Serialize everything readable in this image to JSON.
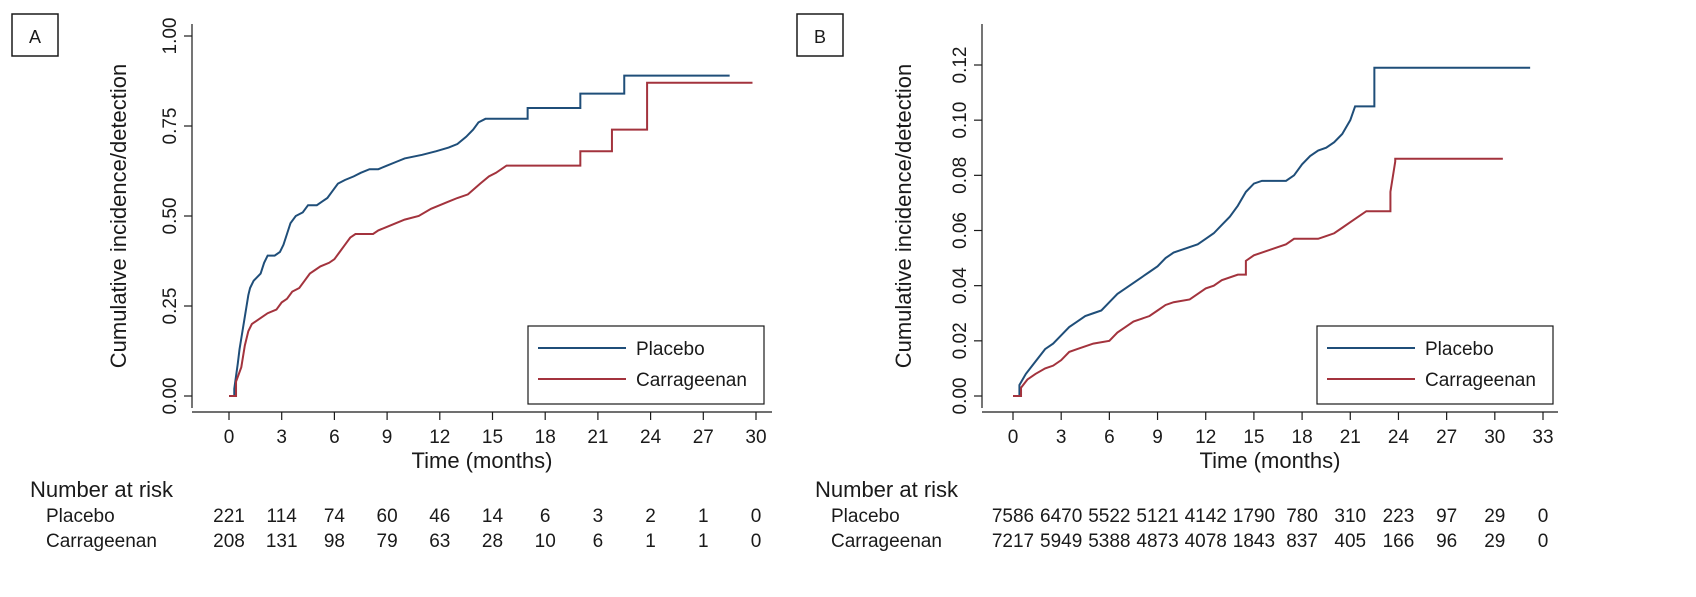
{
  "chart_data": [
    {
      "type": "line",
      "panel_label": "A",
      "ylabel": "Cumulative incidence/detection",
      "xlabel": "Time (months)",
      "xlim": [
        0,
        30
      ],
      "ylim": [
        0,
        1
      ],
      "x_ticks": [
        "0",
        "3",
        "6",
        "9",
        "12",
        "15",
        "18",
        "21",
        "24",
        "27",
        "30"
      ],
      "y_ticks": [
        "0.00",
        "0.25",
        "0.50",
        "0.75",
        "1.00"
      ],
      "grid": false,
      "legend_position": "bottom-right",
      "series": [
        {
          "name": "Placebo",
          "color": "#1f4e79",
          "points": [
            [
              0,
              0
            ],
            [
              0.3,
              0
            ],
            [
              0.3,
              0.02
            ],
            [
              0.5,
              0.09
            ],
            [
              0.6,
              0.13
            ],
            [
              0.7,
              0.16
            ],
            [
              0.8,
              0.19
            ],
            [
              0.9,
              0.22
            ],
            [
              1.0,
              0.25
            ],
            [
              1.1,
              0.28
            ],
            [
              1.2,
              0.3
            ],
            [
              1.4,
              0.32
            ],
            [
              1.6,
              0.33
            ],
            [
              1.8,
              0.34
            ],
            [
              2.0,
              0.37
            ],
            [
              2.2,
              0.39
            ],
            [
              2.6,
              0.39
            ],
            [
              2.9,
              0.4
            ],
            [
              3.1,
              0.42
            ],
            [
              3.3,
              0.45
            ],
            [
              3.5,
              0.48
            ],
            [
              3.8,
              0.5
            ],
            [
              4.2,
              0.51
            ],
            [
              4.5,
              0.53
            ],
            [
              5.0,
              0.53
            ],
            [
              5.3,
              0.54
            ],
            [
              5.6,
              0.55
            ],
            [
              5.9,
              0.57
            ],
            [
              6.2,
              0.59
            ],
            [
              6.6,
              0.6
            ],
            [
              7.1,
              0.61
            ],
            [
              7.5,
              0.62
            ],
            [
              8.0,
              0.63
            ],
            [
              8.5,
              0.63
            ],
            [
              9.0,
              0.64
            ],
            [
              9.5,
              0.65
            ],
            [
              10.0,
              0.66
            ],
            [
              11.0,
              0.67
            ],
            [
              11.8,
              0.68
            ],
            [
              12.5,
              0.69
            ],
            [
              13.0,
              0.7
            ],
            [
              13.5,
              0.72
            ],
            [
              13.9,
              0.74
            ],
            [
              14.2,
              0.76
            ],
            [
              14.6,
              0.77
            ],
            [
              17.0,
              0.77
            ],
            [
              17.0,
              0.8
            ],
            [
              20.0,
              0.8
            ],
            [
              20.0,
              0.84
            ],
            [
              22.5,
              0.84
            ],
            [
              22.5,
              0.89
            ],
            [
              28.5,
              0.89
            ]
          ]
        },
        {
          "name": "Carrageenan",
          "color": "#a3333d",
          "points": [
            [
              0,
              0
            ],
            [
              0.4,
              0
            ],
            [
              0.4,
              0.04
            ],
            [
              0.7,
              0.08
            ],
            [
              0.9,
              0.14
            ],
            [
              1.1,
              0.18
            ],
            [
              1.3,
              0.2
            ],
            [
              1.6,
              0.21
            ],
            [
              1.9,
              0.22
            ],
            [
              2.2,
              0.23
            ],
            [
              2.7,
              0.24
            ],
            [
              3.0,
              0.26
            ],
            [
              3.3,
              0.27
            ],
            [
              3.6,
              0.29
            ],
            [
              4.0,
              0.3
            ],
            [
              4.3,
              0.32
            ],
            [
              4.6,
              0.34
            ],
            [
              4.9,
              0.35
            ],
            [
              5.2,
              0.36
            ],
            [
              5.7,
              0.37
            ],
            [
              6.0,
              0.38
            ],
            [
              6.3,
              0.4
            ],
            [
              6.6,
              0.42
            ],
            [
              6.9,
              0.44
            ],
            [
              7.2,
              0.45
            ],
            [
              8.2,
              0.45
            ],
            [
              8.5,
              0.46
            ],
            [
              9.0,
              0.47
            ],
            [
              9.5,
              0.48
            ],
            [
              10.0,
              0.49
            ],
            [
              10.8,
              0.5
            ],
            [
              11.5,
              0.52
            ],
            [
              12.0,
              0.53
            ],
            [
              12.5,
              0.54
            ],
            [
              13.0,
              0.55
            ],
            [
              13.6,
              0.56
            ],
            [
              14.3,
              0.59
            ],
            [
              14.8,
              0.61
            ],
            [
              15.2,
              0.62
            ],
            [
              15.8,
              0.64
            ],
            [
              20.0,
              0.64
            ],
            [
              20.0,
              0.68
            ],
            [
              21.8,
              0.68
            ],
            [
              21.8,
              0.74
            ],
            [
              23.8,
              0.74
            ],
            [
              23.8,
              0.87
            ],
            [
              29.8,
              0.87
            ]
          ]
        }
      ],
      "risk_table": {
        "title": "Number at risk",
        "rows": [
          {
            "name": "Placebo",
            "values": [
              "221",
              "114",
              "74",
              "60",
              "46",
              "14",
              "6",
              "3",
              "2",
              "1",
              "0"
            ]
          },
          {
            "name": "Carrageenan",
            "values": [
              "208",
              "131",
              "98",
              "79",
              "63",
              "28",
              "10",
              "6",
              "1",
              "1",
              "0"
            ]
          }
        ]
      }
    },
    {
      "type": "line",
      "panel_label": "B",
      "ylabel": "Cumulative incidence/detection",
      "xlabel": "Time (months)",
      "xlim": [
        0,
        33
      ],
      "ylim": [
        0,
        0.13
      ],
      "x_ticks": [
        "0",
        "3",
        "6",
        "9",
        "12",
        "15",
        "18",
        "21",
        "24",
        "27",
        "30",
        "33"
      ],
      "y_ticks": [
        "0.00",
        "0.02",
        "0.04",
        "0.06",
        "0.08",
        "0.10",
        "0.12"
      ],
      "grid": false,
      "legend_position": "bottom-right",
      "series": [
        {
          "name": "Placebo",
          "color": "#1f4e79",
          "points": [
            [
              0,
              0
            ],
            [
              0.4,
              0
            ],
            [
              0.4,
              0.004
            ],
            [
              0.8,
              0.008
            ],
            [
              1.2,
              0.011
            ],
            [
              1.6,
              0.014
            ],
            [
              2.0,
              0.017
            ],
            [
              2.5,
              0.019
            ],
            [
              3.0,
              0.022
            ],
            [
              3.5,
              0.025
            ],
            [
              4.0,
              0.027
            ],
            [
              4.5,
              0.029
            ],
            [
              5.0,
              0.03
            ],
            [
              5.5,
              0.031
            ],
            [
              6.0,
              0.034
            ],
            [
              6.5,
              0.037
            ],
            [
              7.0,
              0.039
            ],
            [
              7.5,
              0.041
            ],
            [
              8.0,
              0.043
            ],
            [
              8.5,
              0.045
            ],
            [
              9.0,
              0.047
            ],
            [
              9.5,
              0.05
            ],
            [
              10.0,
              0.052
            ],
            [
              10.5,
              0.053
            ],
            [
              11.0,
              0.054
            ],
            [
              11.5,
              0.055
            ],
            [
              12.0,
              0.057
            ],
            [
              12.5,
              0.059
            ],
            [
              13.0,
              0.062
            ],
            [
              13.5,
              0.065
            ],
            [
              14.0,
              0.069
            ],
            [
              14.5,
              0.074
            ],
            [
              15.0,
              0.077
            ],
            [
              15.5,
              0.078
            ],
            [
              16.5,
              0.078
            ],
            [
              17.0,
              0.078
            ],
            [
              17.5,
              0.08
            ],
            [
              18.0,
              0.084
            ],
            [
              18.5,
              0.087
            ],
            [
              19.0,
              0.089
            ],
            [
              19.5,
              0.09
            ],
            [
              20.0,
              0.092
            ],
            [
              20.5,
              0.095
            ],
            [
              21.0,
              0.1
            ],
            [
              21.3,
              0.105
            ],
            [
              22.5,
              0.105
            ],
            [
              22.5,
              0.119
            ],
            [
              32.2,
              0.119
            ]
          ]
        },
        {
          "name": "Carrageenan",
          "color": "#a3333d",
          "points": [
            [
              0,
              0
            ],
            [
              0.5,
              0
            ],
            [
              0.5,
              0.003
            ],
            [
              0.9,
              0.006
            ],
            [
              1.4,
              0.008
            ],
            [
              2.0,
              0.01
            ],
            [
              2.5,
              0.011
            ],
            [
              3.0,
              0.013
            ],
            [
              3.5,
              0.016
            ],
            [
              4.0,
              0.017
            ],
            [
              4.5,
              0.018
            ],
            [
              5.0,
              0.019
            ],
            [
              6.0,
              0.02
            ],
            [
              6.5,
              0.023
            ],
            [
              7.0,
              0.025
            ],
            [
              7.5,
              0.027
            ],
            [
              8.0,
              0.028
            ],
            [
              8.5,
              0.029
            ],
            [
              9.0,
              0.031
            ],
            [
              9.5,
              0.033
            ],
            [
              10.0,
              0.034
            ],
            [
              11.0,
              0.035
            ],
            [
              11.5,
              0.037
            ],
            [
              12.0,
              0.039
            ],
            [
              12.5,
              0.04
            ],
            [
              13.0,
              0.042
            ],
            [
              14.0,
              0.044
            ],
            [
              14.5,
              0.044
            ],
            [
              14.5,
              0.049
            ],
            [
              15.0,
              0.051
            ],
            [
              15.5,
              0.052
            ],
            [
              16.0,
              0.053
            ],
            [
              16.5,
              0.054
            ],
            [
              17.0,
              0.055
            ],
            [
              17.5,
              0.057
            ],
            [
              19.0,
              0.057
            ],
            [
              19.5,
              0.058
            ],
            [
              20.0,
              0.059
            ],
            [
              20.5,
              0.061
            ],
            [
              21.0,
              0.063
            ],
            [
              21.5,
              0.065
            ],
            [
              22.0,
              0.067
            ],
            [
              23.5,
              0.067
            ],
            [
              23.5,
              0.074
            ],
            [
              23.8,
              0.085
            ],
            [
              23.8,
              0.086
            ],
            [
              30.5,
              0.086
            ]
          ]
        }
      ],
      "risk_table": {
        "title": "Number at risk",
        "rows": [
          {
            "name": "Placebo",
            "values": [
              "7586",
              "6470",
              "5522",
              "5121",
              "4142",
              "1790",
              "780",
              "310",
              "223",
              "97",
              "29",
              "0"
            ]
          },
          {
            "name": "Carrageenan",
            "values": [
              "7217",
              "5949",
              "5388",
              "4873",
              "4078",
              "1843",
              "837",
              "405",
              "166",
              "96",
              "29",
              "0"
            ]
          }
        ]
      }
    }
  ]
}
